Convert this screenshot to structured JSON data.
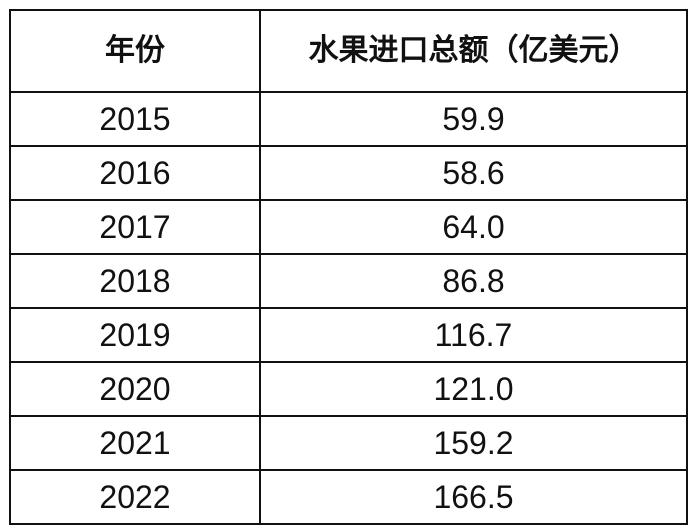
{
  "chart_data": {
    "type": "table",
    "columns": [
      "年份",
      "水果进口总额（亿美元）"
    ],
    "rows": [
      [
        "2015",
        "59.9"
      ],
      [
        "2016",
        "58.6"
      ],
      [
        "2017",
        "64.0"
      ],
      [
        "2018",
        "86.8"
      ],
      [
        "2019",
        "116.7"
      ],
      [
        "2020",
        "121.0"
      ],
      [
        "2021",
        "159.2"
      ],
      [
        "2022",
        "166.5"
      ]
    ]
  }
}
